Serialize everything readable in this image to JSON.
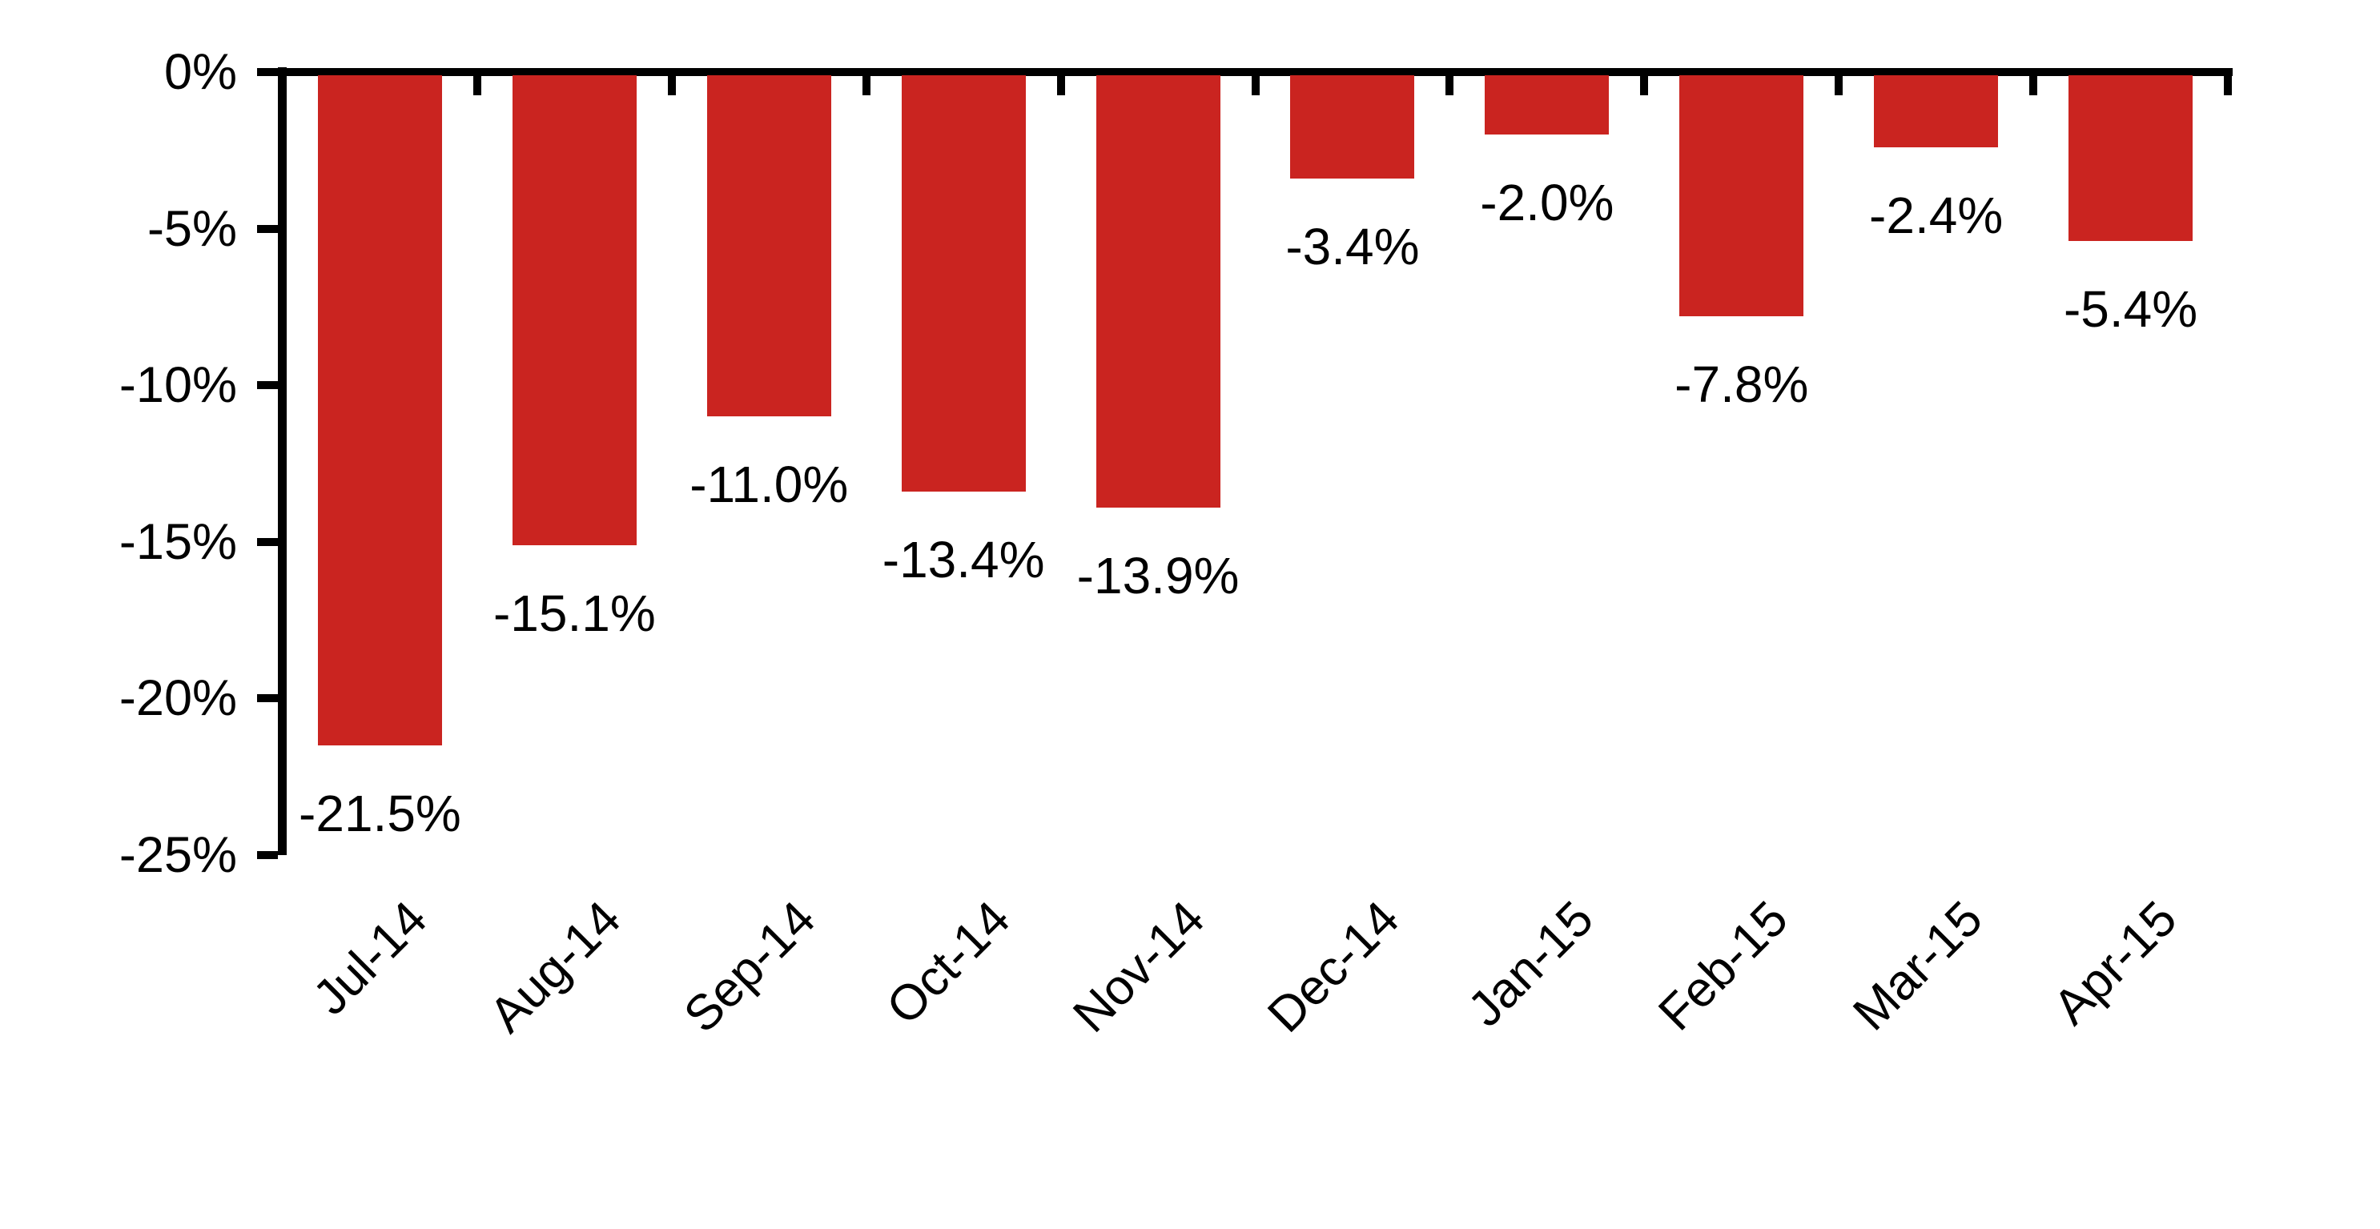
{
  "chart_data": {
    "type": "bar",
    "title": "",
    "xlabel": "",
    "ylabel": "",
    "categories": [
      "Jul-14",
      "Aug-14",
      "Sep-14",
      "Oct-14",
      "Nov-14",
      "Dec-14",
      "Jan-15",
      "Feb-15",
      "Mar-15",
      "Apr-15"
    ],
    "values": [
      -21.5,
      -15.1,
      -11.0,
      -13.4,
      -13.9,
      -3.4,
      -2.0,
      -7.8,
      -2.4,
      -5.4
    ],
    "data_labels": [
      "-21.5%",
      "-15.1%",
      "-11.0%",
      "-13.4%",
      "-13.9%",
      "-3.4%",
      "-2.0%",
      "-7.8%",
      "-2.4%",
      "-5.4%"
    ],
    "ylim": [
      -25,
      0
    ],
    "yticks": [
      0,
      -5,
      -10,
      -15,
      -20,
      -25
    ],
    "ytick_labels": [
      "0%",
      "-5%",
      "-10%",
      "-15%",
      "-20%",
      "-25%"
    ],
    "bar_color": "#CA2420",
    "axis_color": "#000000",
    "text_color": "#000000",
    "grid": false,
    "legend": false,
    "data_label_position": "below-bar-centered",
    "x_label_rotation_deg": 45
  }
}
